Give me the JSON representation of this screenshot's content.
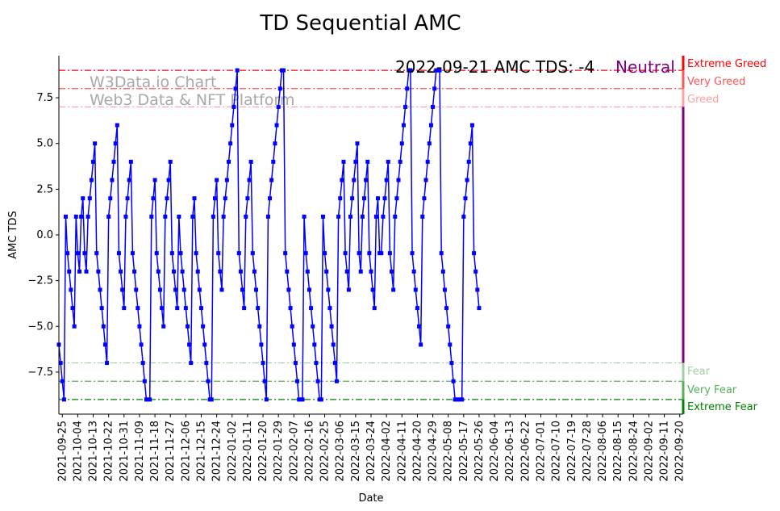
{
  "chart_data": {
    "type": "line",
    "title": "TD Sequential AMC",
    "xlabel": "Date",
    "ylabel": "AMC TDS",
    "ylim": [
      -9.8,
      9.8
    ],
    "yticks": [
      -7.5,
      -5.0,
      -2.5,
      0.0,
      2.5,
      5.0,
      7.5
    ],
    "ytick_labels": [
      "−7.5",
      "−5.0",
      "−2.5",
      "0.0",
      "2.5",
      "5.0",
      "7.5"
    ],
    "xlim": [
      "2021-09-23",
      "2022-09-22"
    ],
    "xtick_labels": [
      "2021-09-25",
      "2021-10-04",
      "2021-10-13",
      "2021-10-22",
      "2021-10-31",
      "2021-11-09",
      "2021-11-18",
      "2021-11-27",
      "2021-12-06",
      "2021-12-15",
      "2021-12-24",
      "2022-01-02",
      "2022-01-11",
      "2022-01-20",
      "2022-01-29",
      "2022-02-07",
      "2022-02-16",
      "2022-02-25",
      "2022-03-06",
      "2022-03-15",
      "2022-03-24",
      "2022-04-02",
      "2022-04-11",
      "2022-04-20",
      "2022-04-29",
      "2022-05-08",
      "2022-05-17",
      "2022-05-26",
      "2022-06-04",
      "2022-06-13",
      "2022-06-22",
      "2022-07-01",
      "2022-07-10",
      "2022-07-19",
      "2022-07-28",
      "2022-08-06",
      "2022-08-15",
      "2022-08-24",
      "2022-09-02",
      "2022-09-11",
      "2022-09-20"
    ],
    "grid": false,
    "series": [
      {
        "name": "",
        "color": "#0000ff",
        "marker": "square",
        "start_date": "2021-09-23",
        "values": [
          -6,
          -7,
          -8,
          -9,
          1,
          -1,
          -2,
          -3,
          -4,
          -5,
          1,
          -1,
          -2,
          1,
          2,
          -1,
          -2,
          1,
          2,
          3,
          4,
          5,
          -1,
          -2,
          -3,
          -4,
          -5,
          -6,
          -7,
          1,
          2,
          3,
          4,
          5,
          6,
          -1,
          -2,
          -3,
          -4,
          1,
          2,
          3,
          4,
          -1,
          -2,
          -3,
          -4,
          -5,
          -6,
          -7,
          -8,
          -9,
          -9,
          -9,
          1,
          2,
          3,
          -1,
          -2,
          -3,
          -4,
          -5,
          1,
          2,
          3,
          4,
          -1,
          -2,
          -3,
          -4,
          1,
          -1,
          -2,
          -3,
          -4,
          -5,
          -6,
          -7,
          1,
          2,
          -1,
          -2,
          -3,
          -4,
          -5,
          -6,
          -7,
          -8,
          -9,
          -9,
          1,
          2,
          3,
          -1,
          -2,
          -3,
          1,
          2,
          3,
          4,
          5,
          6,
          7,
          8,
          9,
          -1,
          -2,
          -3,
          -4,
          1,
          2,
          3,
          4,
          -1,
          -2,
          -3,
          -4,
          -5,
          -6,
          -7,
          -8,
          -9,
          1,
          2,
          3,
          4,
          5,
          6,
          7,
          8,
          9,
          9,
          -1,
          -2,
          -3,
          -4,
          -5,
          -6,
          -7,
          -8,
          -9,
          -9,
          -9,
          1,
          -1,
          -2,
          -3,
          -4,
          -5,
          -6,
          -7,
          -8,
          -9,
          -9,
          1,
          -1,
          -2,
          -3,
          -4,
          -5,
          -6,
          -7,
          -8,
          1,
          2,
          3,
          4,
          -1,
          -2,
          -3,
          1,
          2,
          3,
          4,
          5,
          -1,
          -2,
          1,
          2,
          3,
          4,
          -1,
          -2,
          -3,
          -4,
          1,
          2,
          -1,
          -1,
          1,
          2,
          3,
          4,
          -1,
          -2,
          -3,
          1,
          2,
          3,
          4,
          5,
          6,
          7,
          8,
          9,
          9,
          -1,
          -2,
          -3,
          -4,
          -5,
          -6,
          1,
          2,
          3,
          4,
          5,
          6,
          7,
          8,
          9,
          9,
          9,
          -1,
          -2,
          -3,
          -4,
          -5,
          -6,
          -7,
          -8,
          -9,
          -9,
          -9,
          -9,
          -9,
          1,
          2,
          3,
          4,
          5,
          6,
          -1,
          -2,
          -3,
          -4
        ]
      }
    ],
    "reference_lines": [
      {
        "label": "Extreme Greed",
        "value": 9,
        "color": "#ff0000",
        "style": "dashdot"
      },
      {
        "label": "Very Greed",
        "value": 8,
        "color": "#ff5555",
        "style": "dashdot"
      },
      {
        "label": "Greed",
        "value": 7,
        "color": "#ffa0a0",
        "style": "dashdot"
      },
      {
        "label": "Fear",
        "value": -7,
        "color": "#a0d0a0",
        "style": "dashdot"
      },
      {
        "label": "Very Fear",
        "value": -8,
        "color": "#55b055",
        "style": "dashdot"
      },
      {
        "label": "Extreme Fear",
        "value": -9,
        "color": "#008000",
        "style": "dashdot"
      }
    ],
    "status_text": "2022-09-21 AMC TDS: -4",
    "status_label": "Neutral",
    "status_color": "#800080",
    "watermark": [
      "W3Data.io Chart",
      "Web3 Data & NFT Platform"
    ]
  }
}
